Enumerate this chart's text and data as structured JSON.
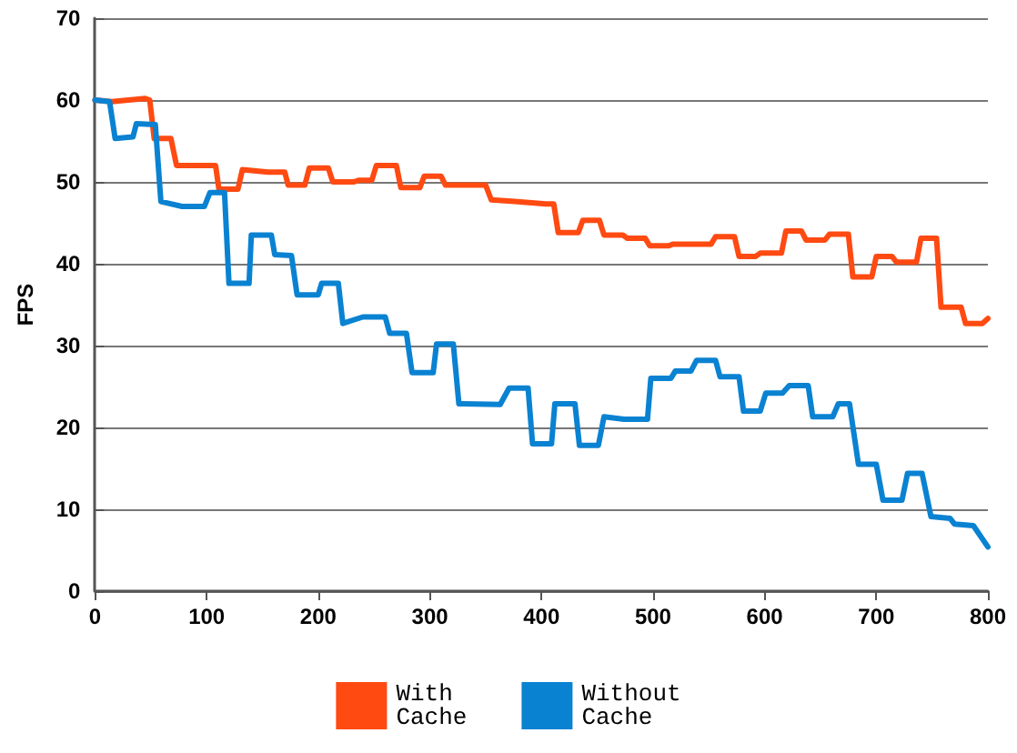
{
  "chart_data": {
    "type": "line",
    "ylabel": "FPS",
    "xlim": [
      0,
      800
    ],
    "xticks": [
      0,
      100,
      200,
      300,
      400,
      500,
      600,
      700,
      800
    ],
    "ylim": [
      0,
      70
    ],
    "yticks": [
      0,
      10,
      20,
      30,
      40,
      50,
      60,
      70
    ],
    "grid": "y",
    "legend": "bottom",
    "marker": "none",
    "line_style": "solid",
    "series": [
      {
        "name": "With\nCache",
        "color": "#ff4a12",
        "x": [
          0,
          15,
          30,
          45,
          49,
          53,
          68,
          73,
          108,
          111,
          128,
          132,
          155,
          170,
          173,
          188,
          192,
          209,
          213,
          232,
          236,
          248,
          252,
          270,
          274,
          291,
          295,
          310,
          314,
          350,
          355,
          376,
          404,
          411,
          415,
          433,
          437,
          452,
          456,
          473,
          477,
          493,
          497,
          514,
          518,
          552,
          556,
          573,
          577,
          592,
          596,
          615,
          619,
          633,
          637,
          654,
          658,
          675,
          679,
          696,
          700,
          714,
          718,
          736,
          740,
          754,
          758,
          776,
          780,
          795,
          800
        ],
        "values": [
          60,
          59.8,
          60,
          60.2,
          60,
          55.3,
          55.3,
          52,
          52,
          49.1,
          49.1,
          51.5,
          51.2,
          51.2,
          49.6,
          49.6,
          51.7,
          51.7,
          50,
          50,
          50.2,
          50.2,
          52,
          52,
          49.3,
          49.3,
          50.7,
          50.7,
          49.6,
          49.6,
          47.8,
          47.6,
          47.3,
          47.3,
          43.8,
          43.8,
          45.3,
          45.3,
          43.5,
          43.5,
          43.1,
          43.1,
          42.2,
          42.2,
          42.4,
          42.4,
          43.3,
          43.3,
          40.9,
          40.9,
          41.3,
          41.3,
          44,
          44,
          42.9,
          42.9,
          43.6,
          43.6,
          38.4,
          38.4,
          40.9,
          40.9,
          40.2,
          40.2,
          43.1,
          43.1,
          34.7,
          34.7,
          32.7,
          32.7,
          33.3
        ]
      },
      {
        "name": "Without\nCache",
        "color": "#0a82d2",
        "x": [
          0,
          13,
          18,
          34,
          37,
          54,
          59,
          78,
          98,
          103,
          116,
          120,
          138,
          140,
          158,
          161,
          176,
          181,
          200,
          203,
          218,
          222,
          240,
          260,
          264,
          279,
          284,
          303,
          306,
          321,
          326,
          363,
          371,
          388,
          392,
          409,
          412,
          430,
          434,
          451,
          456,
          474,
          495,
          498,
          516,
          520,
          534,
          539,
          556,
          560,
          577,
          581,
          596,
          601,
          616,
          622,
          639,
          643,
          661,
          666,
          676,
          684,
          700,
          706,
          723,
          728,
          741,
          749,
          766,
          770,
          787,
          800
        ],
        "values": [
          60,
          59.8,
          55.3,
          55.5,
          57.1,
          57,
          47.6,
          47,
          47,
          48.7,
          48.7,
          37.6,
          37.6,
          43.5,
          43.5,
          41.1,
          41,
          36.2,
          36.2,
          37.6,
          37.6,
          32.7,
          33.5,
          33.5,
          31.5,
          31.5,
          26.7,
          26.7,
          30.2,
          30.2,
          22.9,
          22.8,
          24.8,
          24.8,
          18,
          18,
          22.9,
          22.9,
          17.8,
          17.8,
          21.3,
          21,
          21,
          26,
          26,
          26.9,
          26.9,
          28.2,
          28.2,
          26.2,
          26.2,
          22,
          22,
          24.2,
          24.2,
          25.1,
          25.1,
          21.3,
          21.3,
          22.9,
          22.9,
          15.5,
          15.5,
          11.1,
          11.1,
          14.4,
          14.4,
          9.1,
          8.9,
          8.2,
          8,
          5.4
        ]
      }
    ]
  }
}
